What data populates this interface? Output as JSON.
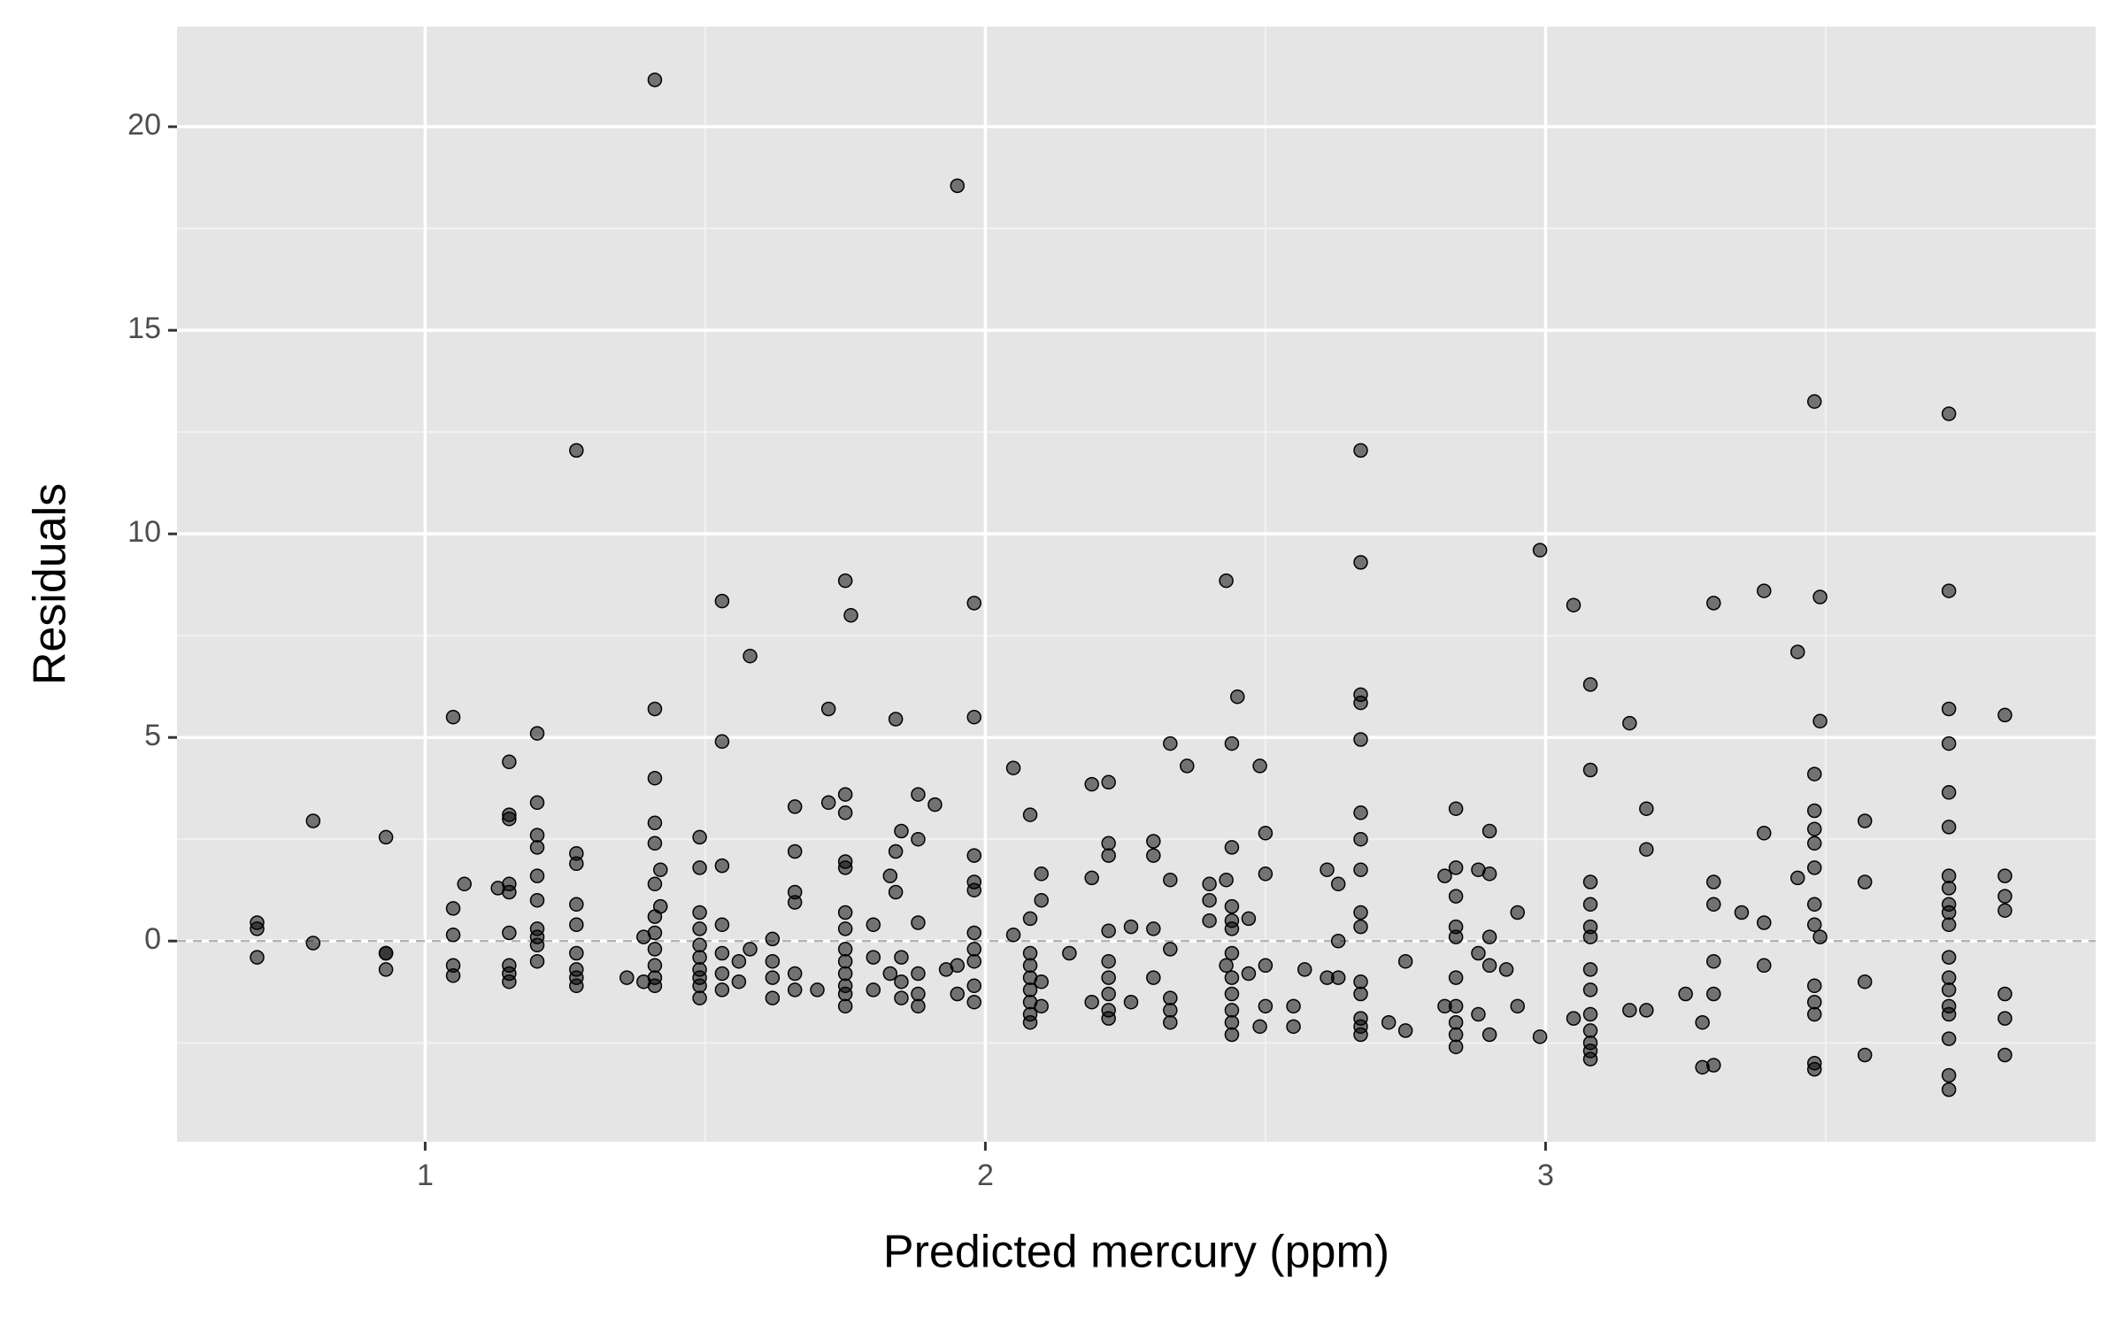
{
  "chart_data": {
    "type": "scatter",
    "x_label": "Predicted mercury (ppm)",
    "y_label": "Residuals",
    "color": "#000000",
    "grid": true,
    "reference_line": 0,
    "xlim": [
      0.557,
      3.982
    ],
    "ylim": [
      -4.93,
      22.46
    ],
    "xticks": [
      1,
      2,
      3
    ],
    "yticks": [
      0,
      5,
      10,
      15,
      20
    ],
    "x": [
      0.7,
      0.7,
      0.7,
      0.8,
      0.8,
      0.93,
      0.93,
      0.93,
      0.93,
      1.05,
      1.05,
      1.05,
      1.05,
      1.05,
      1.07,
      1.13,
      1.15,
      1.15,
      1.15,
      1.15,
      1.15,
      1.15,
      1.15,
      1.15,
      1.15,
      1.2,
      1.2,
      1.2,
      1.2,
      1.2,
      1.2,
      1.2,
      1.2,
      1.2,
      1.2,
      1.27,
      1.27,
      1.27,
      1.27,
      1.27,
      1.27,
      1.27,
      1.27,
      1.27,
      1.36,
      1.39,
      1.39,
      1.41,
      1.41,
      1.41,
      1.41,
      1.41,
      1.41,
      1.41,
      1.41,
      1.41,
      1.41,
      1.41,
      1.41,
      1.42,
      1.42,
      1.49,
      1.49,
      1.49,
      1.49,
      1.49,
      1.49,
      1.49,
      1.49,
      1.49,
      1.49,
      1.53,
      1.53,
      1.53,
      1.53,
      1.53,
      1.53,
      1.53,
      1.56,
      1.56,
      1.58,
      1.58,
      1.62,
      1.62,
      1.62,
      1.62,
      1.66,
      1.66,
      1.66,
      1.66,
      1.66,
      1.66,
      1.7,
      1.72,
      1.72,
      1.75,
      1.75,
      1.75,
      1.75,
      1.75,
      1.75,
      1.75,
      1.75,
      1.75,
      1.75,
      1.75,
      1.75,
      1.75,
      1.76,
      1.8,
      1.8,
      1.8,
      1.83,
      1.83,
      1.84,
      1.84,
      1.84,
      1.85,
      1.85,
      1.85,
      1.85,
      1.88,
      1.88,
      1.88,
      1.88,
      1.88,
      1.88,
      1.91,
      1.93,
      1.95,
      1.95,
      1.95,
      1.98,
      1.98,
      1.98,
      1.98,
      1.98,
      1.98,
      1.98,
      1.98,
      1.98,
      1.98,
      2.05,
      2.05,
      2.08,
      2.08,
      2.08,
      2.08,
      2.08,
      2.08,
      2.08,
      2.08,
      2.08,
      2.1,
      2.1,
      2.1,
      2.1,
      2.15,
      2.19,
      2.19,
      2.19,
      2.22,
      2.22,
      2.22,
      2.22,
      2.22,
      2.22,
      2.22,
      2.22,
      2.22,
      2.26,
      2.26,
      2.3,
      2.3,
      2.3,
      2.3,
      2.33,
      2.33,
      2.33,
      2.33,
      2.33,
      2.33,
      2.36,
      2.4,
      2.4,
      2.4,
      2.43,
      2.43,
      2.43,
      2.44,
      2.44,
      2.44,
      2.44,
      2.44,
      2.44,
      2.44,
      2.44,
      2.44,
      2.44,
      2.44,
      2.45,
      2.47,
      2.47,
      2.49,
      2.49,
      2.5,
      2.5,
      2.5,
      2.5,
      2.55,
      2.55,
      2.57,
      2.61,
      2.61,
      2.63,
      2.63,
      2.63,
      2.67,
      2.67,
      2.67,
      2.67,
      2.67,
      2.67,
      2.67,
      2.67,
      2.67,
      2.67,
      2.67,
      2.67,
      2.67,
      2.67,
      2.67,
      2.72,
      2.75,
      2.75,
      2.82,
      2.82,
      2.84,
      2.84,
      2.84,
      2.84,
      2.84,
      2.84,
      2.84,
      2.84,
      2.84,
      2.84,
      2.88,
      2.88,
      2.88,
      2.9,
      2.9,
      2.9,
      2.9,
      2.9,
      2.93,
      2.95,
      2.95,
      2.99,
      2.99,
      3.05,
      3.05,
      3.08,
      3.08,
      3.08,
      3.08,
      3.08,
      3.08,
      3.08,
      3.08,
      3.08,
      3.08,
      3.08,
      3.08,
      3.08,
      3.15,
      3.15,
      3.18,
      3.18,
      3.18,
      3.25,
      3.28,
      3.28,
      3.3,
      3.3,
      3.3,
      3.3,
      3.3,
      3.3,
      3.35,
      3.39,
      3.39,
      3.39,
      3.39,
      3.45,
      3.45,
      3.48,
      3.48,
      3.48,
      3.48,
      3.48,
      3.48,
      3.48,
      3.48,
      3.48,
      3.48,
      3.48,
      3.48,
      3.48,
      3.49,
      3.49,
      3.49,
      3.57,
      3.57,
      3.57,
      3.57,
      3.72,
      3.72,
      3.72,
      3.72,
      3.72,
      3.72,
      3.72,
      3.72,
      3.72,
      3.72,
      3.72,
      3.72,
      3.72,
      3.72,
      3.72,
      3.72,
      3.72,
      3.72,
      3.72,
      3.82,
      3.82,
      3.82,
      3.82,
      3.82,
      3.82,
      3.82
    ],
    "values": [
      0.45,
      0.3,
      -0.4,
      2.95,
      -0.05,
      2.55,
      -0.3,
      -0.7,
      -0.3,
      5.5,
      0.8,
      0.15,
      -0.6,
      -0.85,
      1.4,
      1.3,
      4.4,
      3.1,
      3.0,
      1.4,
      1.2,
      0.2,
      -0.6,
      -0.8,
      -1.0,
      5.1,
      3.4,
      2.6,
      2.3,
      1.6,
      1.0,
      0.3,
      0.1,
      -0.1,
      -0.5,
      12.05,
      2.15,
      1.9,
      0.9,
      0.4,
      -0.3,
      -0.7,
      -0.9,
      -1.1,
      -0.9,
      -1.0,
      0.1,
      21.15,
      5.7,
      4.0,
      2.9,
      2.4,
      1.4,
      0.6,
      0.2,
      -0.2,
      -0.6,
      -0.9,
      -1.1,
      1.75,
      0.85,
      2.55,
      1.8,
      0.7,
      0.3,
      -0.1,
      -0.4,
      -0.7,
      -0.9,
      -1.1,
      -1.4,
      8.35,
      4.9,
      1.85,
      0.4,
      -0.3,
      -0.8,
      -1.2,
      -0.5,
      -1.0,
      7.0,
      -0.2,
      0.05,
      -0.5,
      -0.9,
      -1.4,
      3.3,
      2.2,
      1.2,
      0.95,
      -0.8,
      -1.2,
      -1.2,
      5.7,
      3.4,
      8.85,
      3.6,
      3.15,
      1.95,
      1.8,
      0.7,
      0.3,
      -0.2,
      -0.5,
      -0.8,
      -1.1,
      -1.3,
      -1.6,
      8.0,
      0.4,
      -0.4,
      -1.2,
      1.6,
      -0.8,
      5.45,
      2.2,
      1.2,
      2.7,
      -0.4,
      -1.0,
      -1.4,
      3.6,
      2.5,
      0.45,
      -0.8,
      -1.3,
      -1.6,
      3.35,
      -0.7,
      18.55,
      -0.6,
      -1.3,
      8.3,
      5.5,
      2.1,
      1.45,
      1.25,
      0.2,
      -0.2,
      -0.5,
      -1.1,
      -1.5,
      4.25,
      0.15,
      3.1,
      0.55,
      -0.3,
      -0.6,
      -0.9,
      -1.2,
      -1.5,
      -1.8,
      -2.0,
      1.65,
      1.0,
      -1.0,
      -1.6,
      -0.3,
      3.85,
      1.55,
      -1.5,
      3.9,
      2.4,
      2.1,
      0.25,
      -0.5,
      -0.9,
      -1.3,
      -1.7,
      -1.9,
      0.35,
      -1.5,
      2.45,
      2.1,
      0.3,
      -0.9,
      4.85,
      1.5,
      -0.2,
      -1.4,
      -1.7,
      -2.0,
      4.3,
      1.4,
      1.0,
      0.5,
      8.85,
      1.5,
      -0.6,
      4.85,
      2.3,
      0.85,
      0.5,
      0.3,
      -0.3,
      -0.9,
      -1.3,
      -1.7,
      -2.0,
      -2.3,
      6.0,
      0.55,
      -0.8,
      4.3,
      -2.1,
      2.65,
      1.65,
      -0.6,
      -1.6,
      -1.6,
      -2.1,
      -0.7,
      1.75,
      -0.9,
      1.4,
      -0.9,
      0.0,
      12.05,
      9.3,
      6.05,
      5.85,
      4.95,
      3.15,
      2.5,
      1.75,
      0.7,
      0.35,
      -1.0,
      -1.3,
      -1.9,
      -2.1,
      -2.3,
      -2.0,
      -0.5,
      -2.2,
      1.6,
      -1.6,
      3.25,
      1.8,
      1.1,
      0.35,
      0.1,
      -0.9,
      -1.6,
      -2.0,
      -2.3,
      -2.6,
      1.75,
      -0.3,
      -1.8,
      2.7,
      1.65,
      0.1,
      -0.6,
      -2.3,
      -0.7,
      0.7,
      -1.6,
      9.6,
      -2.35,
      8.25,
      -1.9,
      6.3,
      4.2,
      1.45,
      0.9,
      0.35,
      0.1,
      -0.7,
      -1.2,
      -1.8,
      -2.2,
      -2.5,
      -2.7,
      -2.9,
      5.35,
      -1.7,
      3.25,
      2.25,
      -1.7,
      -1.3,
      -2.0,
      -3.1,
      8.3,
      1.45,
      0.9,
      -0.5,
      -1.3,
      -3.05,
      0.7,
      8.6,
      2.65,
      0.45,
      -0.6,
      7.1,
      1.55,
      13.25,
      4.1,
      3.2,
      2.75,
      2.4,
      1.8,
      0.9,
      0.4,
      -1.1,
      -1.5,
      -1.8,
      -3.0,
      -3.15,
      8.45,
      5.4,
      0.1,
      2.95,
      1.45,
      -1.0,
      -2.8,
      12.95,
      8.6,
      5.7,
      4.85,
      3.65,
      2.8,
      1.6,
      1.3,
      0.9,
      0.7,
      0.4,
      -0.4,
      -0.9,
      -1.2,
      -1.6,
      -1.8,
      -2.4,
      -3.3,
      -3.65,
      5.55,
      1.6,
      1.1,
      0.75,
      -1.3,
      -1.9,
      -2.8
    ]
  }
}
